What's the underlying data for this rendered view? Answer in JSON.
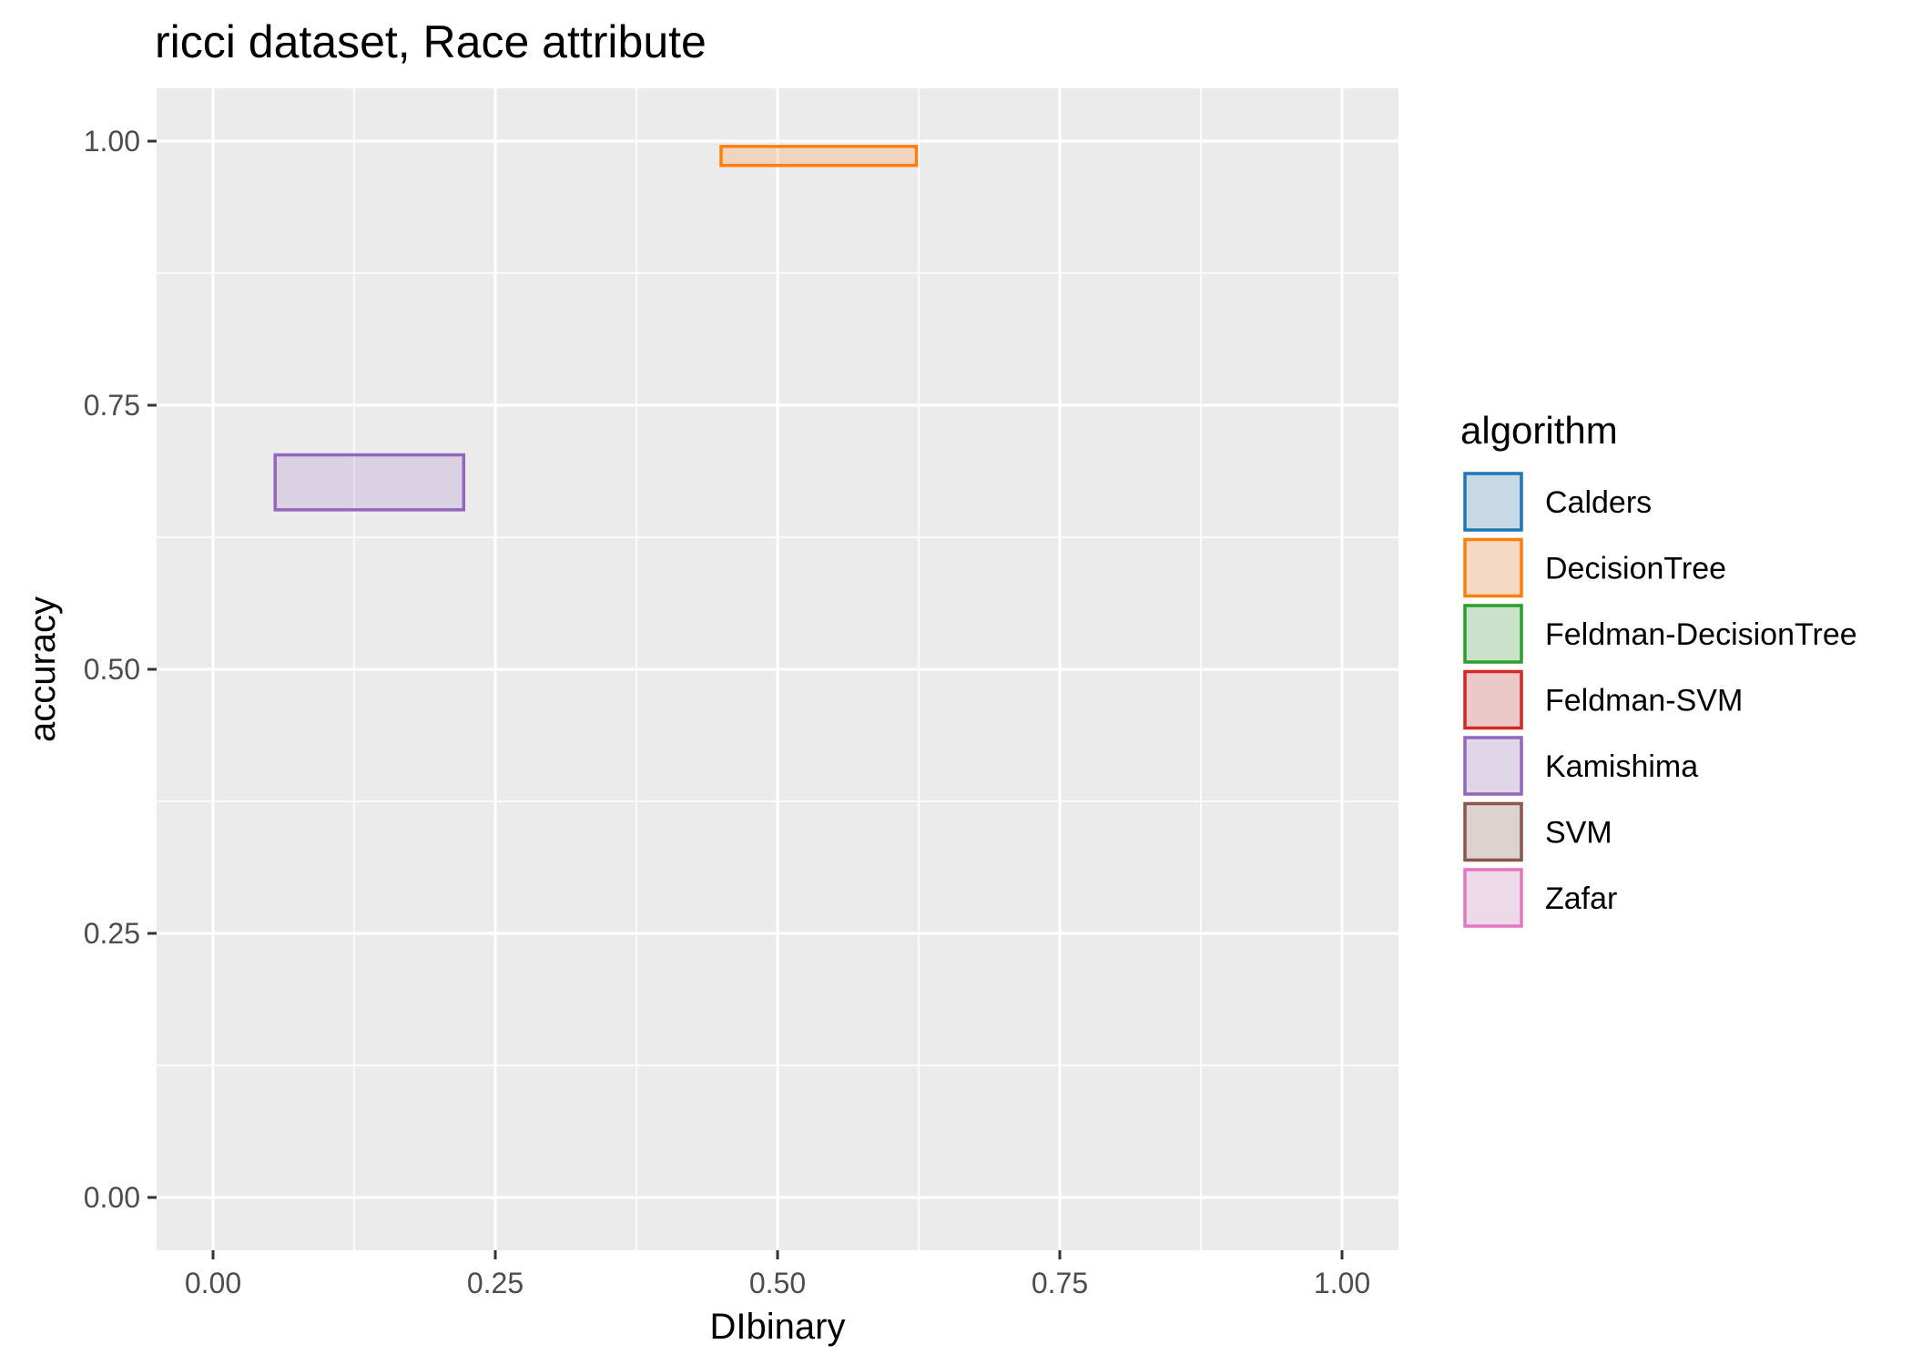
{
  "chart_data": {
    "type": "rectangles",
    "title": "ricci dataset, Race attribute",
    "xlabel": "DIbinary",
    "ylabel": "accuracy",
    "xlim": [
      -0.05,
      1.05
    ],
    "ylim": [
      -0.05,
      1.05
    ],
    "x_ticks": [
      0.0,
      0.25,
      0.5,
      0.75,
      1.0
    ],
    "x_tick_labels": [
      "0.00",
      "0.25",
      "0.50",
      "0.75",
      "1.00"
    ],
    "y_ticks": [
      0.0,
      0.25,
      0.5,
      0.75,
      1.0
    ],
    "y_tick_labels": [
      "0.00",
      "0.25",
      "0.50",
      "0.75",
      "1.00"
    ],
    "grid": true,
    "legend": {
      "title": "algorithm",
      "placement": "right",
      "entries": [
        {
          "name": "Calders",
          "color": "#1f77b4"
        },
        {
          "name": "DecisionTree",
          "color": "#ff7f0e"
        },
        {
          "name": "Feldman-DecisionTree",
          "color": "#2ca02c"
        },
        {
          "name": "Feldman-SVM",
          "color": "#d62728"
        },
        {
          "name": "Kamishima",
          "color": "#9467bd"
        },
        {
          "name": "SVM",
          "color": "#8c564b"
        },
        {
          "name": "Zafar",
          "color": "#e377c2"
        }
      ]
    },
    "series": [
      {
        "name": "DecisionTree",
        "color": "#ff7f0e",
        "xmin": 0.45,
        "xmax": 0.623,
        "ymin": 0.977,
        "ymax": 0.995
      },
      {
        "name": "Kamishima",
        "color": "#9467bd",
        "xmin": 0.055,
        "xmax": 0.222,
        "ymin": 0.651,
        "ymax": 0.703
      }
    ],
    "panel_background": "#ebebeb",
    "grid_color": "#ffffff"
  }
}
